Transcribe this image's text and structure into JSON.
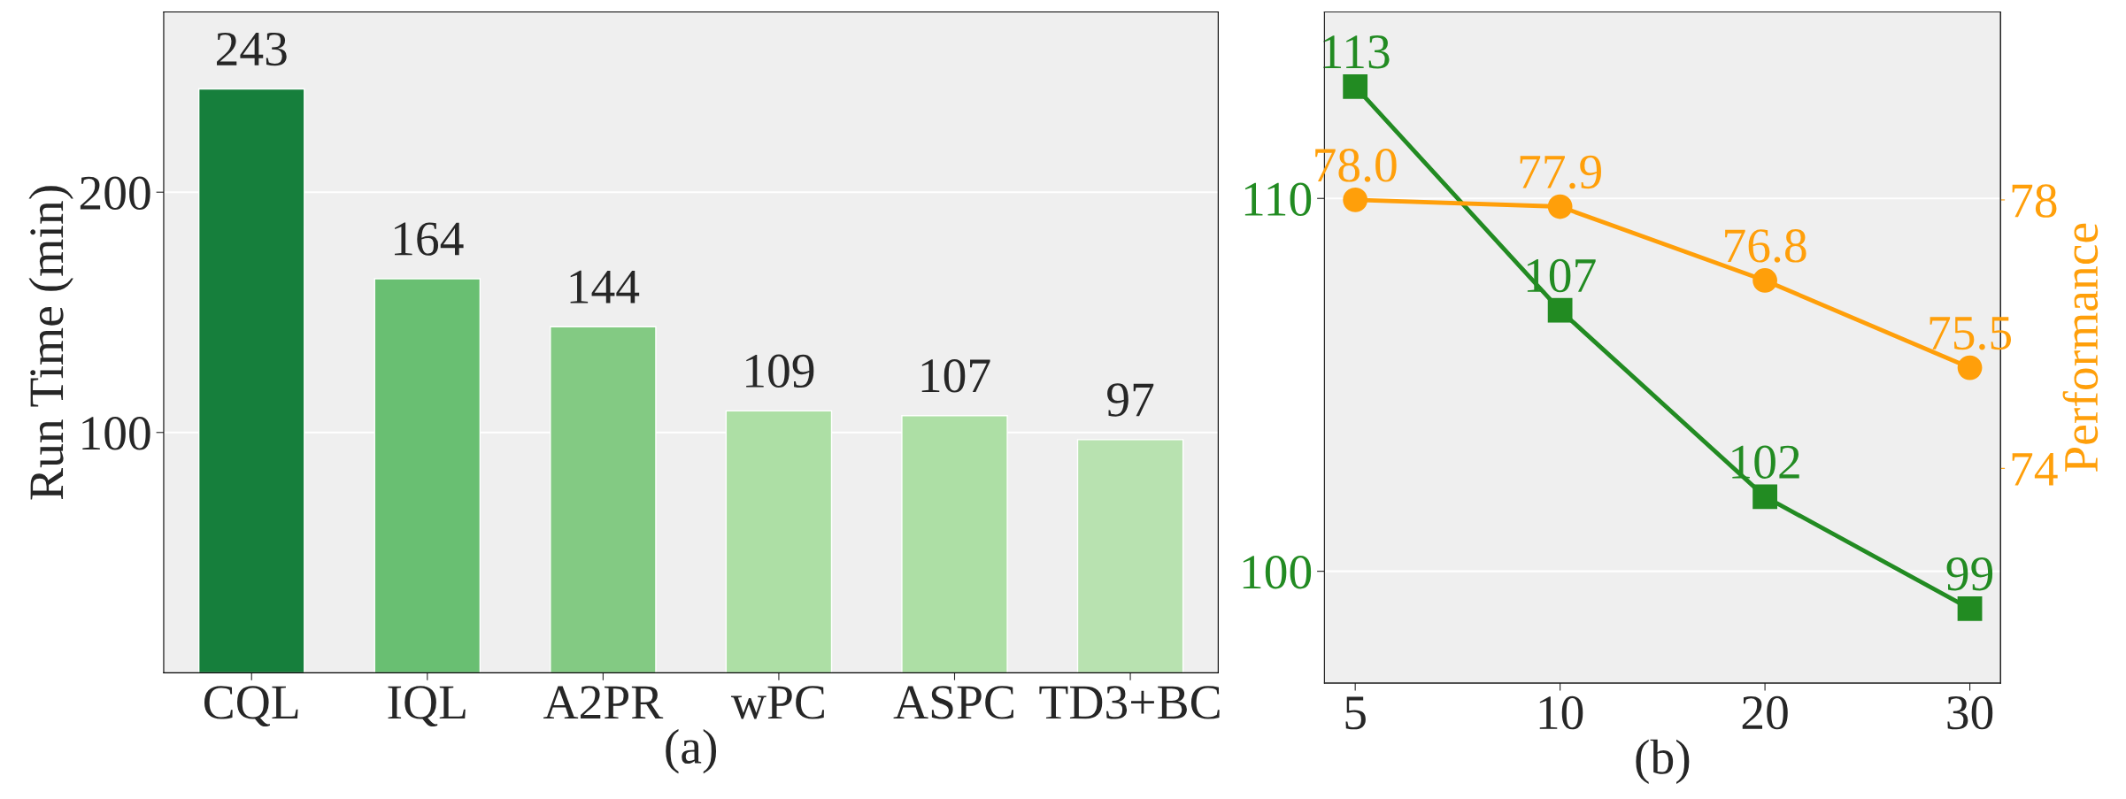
{
  "chart_data": [
    {
      "type": "bar",
      "xlabel": "(a)",
      "ylabel": "Run Time (min)",
      "categories": [
        "CQL",
        "IQL",
        "A2PR",
        "wPC",
        "ASPC",
        "TD3+BC"
      ],
      "values": [
        243,
        164,
        144,
        109,
        107,
        97
      ],
      "colors": [
        "#167f3c",
        "#69bf72",
        "#83ca83",
        "#addfa5",
        "#addfa5",
        "#b8e2b0"
      ],
      "ylim": [
        0,
        275
      ],
      "yticks": [
        100,
        200
      ],
      "grid": "y",
      "data_labels": true
    },
    {
      "type": "line",
      "xlabel": "(b)",
      "y2label": "Performance",
      "categories": [
        "5",
        "10",
        "20",
        "30"
      ],
      "series": [
        {
          "color": "#228b22",
          "values": [
            113,
            107,
            102,
            99
          ],
          "marker": "square"
        },
        {
          "color": "#ff9f0a",
          "values": [
            78.0,
            77.9,
            76.8,
            75.5
          ],
          "marker": "circle",
          "axis": "y2",
          "value_labels": [
            "78.0",
            "77.9",
            "76.8",
            "75.5"
          ]
        }
      ],
      "ylim": [
        97,
        115
      ],
      "yticks": [
        100,
        110
      ],
      "y2lim": [
        70.8,
        80.8
      ],
      "y2ticks": [
        74,
        78
      ],
      "grid": "y",
      "data_labels": true
    }
  ]
}
